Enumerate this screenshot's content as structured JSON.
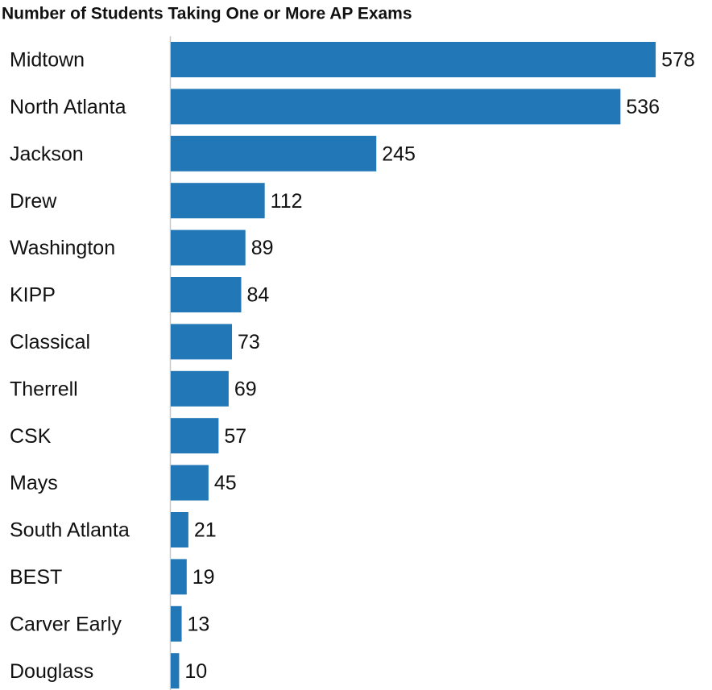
{
  "chart_data": {
    "type": "hbar",
    "title": "Number of Students Taking One or More AP Exams",
    "categories": [
      "Midtown",
      "North Atlanta",
      "Jackson",
      "Drew",
      "Washington",
      "KIPP",
      "Classical",
      "Therrell",
      "CSK",
      "Mays",
      "South Atlanta",
      "BEST",
      "Carver Early",
      "Douglass"
    ],
    "values": [
      578,
      536,
      245,
      112,
      89,
      84,
      73,
      69,
      57,
      45,
      21,
      19,
      13,
      10
    ],
    "color": "#2277b6",
    "xlim": [
      0,
      600
    ]
  }
}
